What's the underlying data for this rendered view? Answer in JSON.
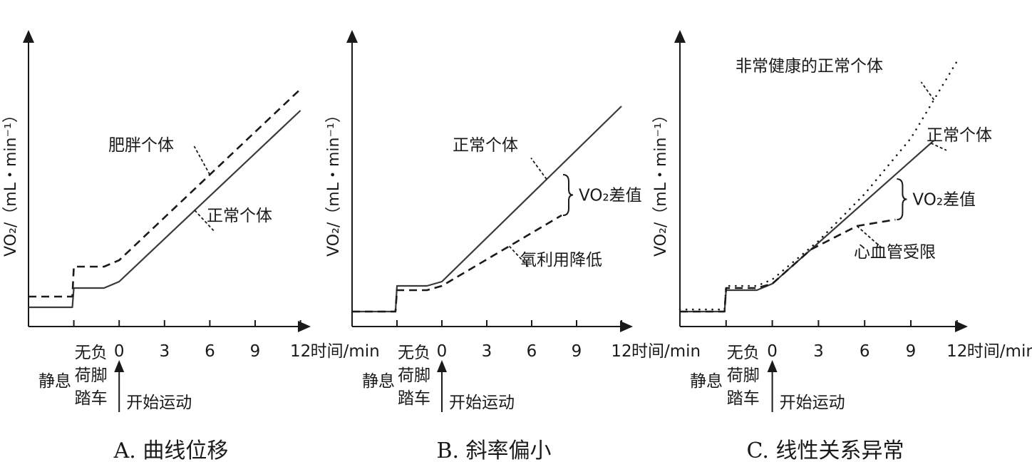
{
  "chart_data": [
    {
      "type": "line",
      "title": "A. 曲线位移",
      "xlabel": "时间/min",
      "ylabel": "VO₂/（mL・min⁻¹）",
      "x_ticks": [
        "0",
        "3",
        "6",
        "9",
        "12"
      ],
      "xlim": [
        -6,
        12
      ],
      "ylim": [
        0,
        100
      ],
      "grid": false,
      "phases": {
        "rest": "静息",
        "unloaded": [
          "无负",
          "荷脚",
          "踏车"
        ],
        "start": "开始运动"
      },
      "series": [
        {
          "name": "正常个体",
          "style": "solid",
          "x": [
            -6,
            -3.1,
            -3,
            -1,
            0,
            12
          ],
          "y": [
            9,
            9,
            18,
            18,
            21,
            101
          ]
        },
        {
          "name": "肥胖个体",
          "style": "dashed",
          "x": [
            -6,
            -3.1,
            -3,
            -1,
            0,
            12
          ],
          "y": [
            14,
            14,
            28,
            28,
            31,
            111
          ]
        }
      ],
      "annotations": [
        {
          "text": "肥胖个体",
          "series": "肥胖个体",
          "at_x": 6
        },
        {
          "text": "正常个体",
          "series": "正常个体",
          "at_x": 5
        }
      ]
    },
    {
      "type": "line",
      "title": "B. 斜率偏小",
      "xlabel": "时间/min",
      "ylabel": "VO₂/（mL・min⁻¹）",
      "x_ticks": [
        "0",
        "3",
        "6",
        "9",
        "12"
      ],
      "xlim": [
        -6,
        12
      ],
      "ylim": [
        0,
        100
      ],
      "grid": false,
      "phases": {
        "rest": "静息",
        "unloaded": [
          "无负",
          "荷脚",
          "踏车"
        ],
        "start": "开始运动"
      },
      "series": [
        {
          "name": "正常个体",
          "style": "solid",
          "x": [
            -6,
            -3.1,
            -3,
            -1,
            0,
            12
          ],
          "y": [
            7,
            7,
            19,
            19,
            21,
            103
          ]
        },
        {
          "name": "氧利用降低",
          "style": "dashed",
          "x": [
            -6,
            -3.1,
            -3,
            -1,
            0,
            8
          ],
          "y": [
            7,
            7,
            17,
            17,
            19,
            52
          ]
        }
      ],
      "bracket": {
        "label": "VO₂差值",
        "x": 8,
        "y_low": 52,
        "y_high": 71
      },
      "annotations": [
        {
          "text": "正常个体",
          "series": "正常个体",
          "at_x": 7
        },
        {
          "text": "氧利用降低",
          "series": "氧利用降低",
          "at_x": 4.5
        }
      ]
    },
    {
      "type": "line",
      "title": "C. 线性关系异常",
      "xlabel": "时间/min",
      "ylabel": "VO₂/（mL・min⁻¹）",
      "x_ticks": [
        "0",
        "3",
        "6",
        "9",
        "12"
      ],
      "xlim": [
        -6,
        12
      ],
      "ylim": [
        0,
        100
      ],
      "grid": false,
      "phases": {
        "rest": "静息",
        "unloaded": [
          "无负",
          "荷脚",
          "踏车"
        ],
        "start": "开始运动"
      },
      "series": [
        {
          "name": "正常个体",
          "style": "solid",
          "x": [
            -6,
            -3.1,
            -3,
            -1,
            0,
            10.5
          ],
          "y": [
            7,
            7,
            17,
            17,
            20,
            87
          ]
        },
        {
          "name": "非常健康的正常个体",
          "style": "dotted",
          "x": [
            -6,
            -3.1,
            -3,
            -1,
            0,
            3,
            6,
            9,
            12
          ],
          "y": [
            8,
            8,
            19,
            19,
            22,
            40,
            62,
            88,
            124
          ]
        },
        {
          "name": "心血管受限",
          "style": "dashed",
          "x": [
            -6,
            -3.1,
            -3,
            -1,
            0,
            2.5,
            5.5,
            8
          ],
          "y": [
            7,
            7,
            18,
            18,
            20,
            36,
            47,
            50
          ]
        }
      ],
      "bracket": {
        "label": "VO₂差值",
        "x": 8,
        "y_low": 50,
        "y_high": 69
      },
      "annotations": [
        {
          "text": "非常健康的正常个体",
          "series": "非常健康的正常个体",
          "at_x": 10.5
        },
        {
          "text": "正常个体",
          "series": "正常个体",
          "at_x": 10.3
        },
        {
          "text": "心血管受限",
          "series": "心血管受限",
          "at_x": 5.5
        }
      ]
    }
  ]
}
